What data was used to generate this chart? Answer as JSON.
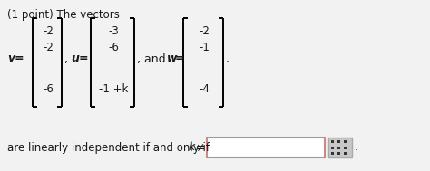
{
  "background_color": "#f2f2f2",
  "title_text": "(1 point) The vectors",
  "v_label": "v",
  "u_label": "u",
  "w_label": "w",
  "v_entries": [
    "-2",
    "-2",
    "",
    "-6"
  ],
  "u_entries": [
    "-3",
    "-6",
    "",
    "-1 +k"
  ],
  "w_entries": [
    "-2",
    "-1",
    "",
    "-4"
  ],
  "bottom_prefix": "are linearly independent if and only if ",
  "bottom_k_italic": "k",
  "input_box_color": "#ffffff",
  "input_box_border": "#d9909090",
  "grid_icon_bg": "#d0d0d0",
  "grid_dot_color": "#333333",
  "text_color": "#1a1a1a"
}
